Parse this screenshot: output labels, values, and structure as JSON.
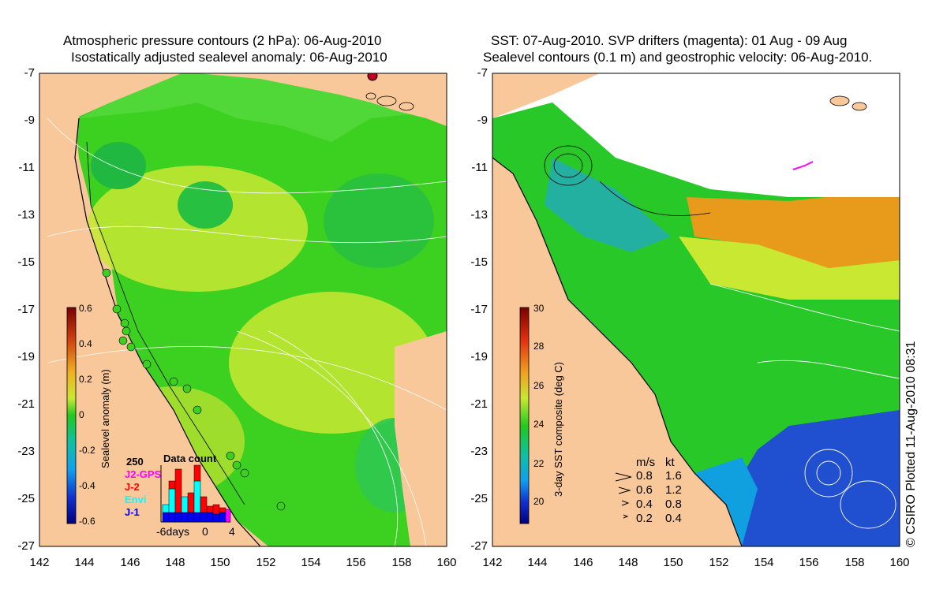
{
  "left_panel": {
    "title_line1": "Atmospheric pressure contours (2 hPa): 06-Aug-2010",
    "title_line2": "Isostatically adjusted sealevel anomaly: 06-Aug-2010",
    "colorbar_label": "Sealevel anomaly (m)",
    "colorbar_ticks": [
      "0.6",
      "0.4",
      "0.2",
      "0",
      "-0.2",
      "-0.4",
      "-0.6"
    ],
    "legend": {
      "max_label": "250",
      "title": "Data count",
      "items": [
        {
          "label": "J2-GPS",
          "color": "#ff00ff"
        },
        {
          "label": "J-2",
          "color": "#ff0000"
        },
        {
          "label": "Envi",
          "color": "#00ffff"
        },
        {
          "label": "J-1",
          "color": "#0000ff"
        }
      ],
      "axis_labels": [
        "-6days",
        "0",
        "4"
      ]
    }
  },
  "right_panel": {
    "title_line1": "SST: 07-Aug-2010. SVP drifters (magenta): 01 Aug - 09 Aug",
    "title_line2": "Sealevel contours (0.1 m) and geostrophic velocity: 06-Aug-2010.",
    "colorbar_label": "3-day SST composite (deg C)",
    "colorbar_ticks": [
      "30",
      "28",
      "26",
      "24",
      "22",
      "20"
    ],
    "speed_legend": {
      "headers": [
        "m/s",
        "kt"
      ],
      "rows": [
        [
          "0.8",
          "1.6"
        ],
        [
          "0.6",
          "1.2"
        ],
        [
          "0.4",
          "0.8"
        ],
        [
          "0.2",
          "0.4"
        ]
      ]
    }
  },
  "axes": {
    "y_ticks": [
      "-7",
      "-9",
      "-11",
      "-13",
      "-15",
      "-17",
      "-19",
      "-21",
      "-23",
      "-25",
      "-27"
    ],
    "x_ticks": [
      "142",
      "144",
      "146",
      "148",
      "150",
      "152",
      "154",
      "156",
      "158",
      "160"
    ]
  },
  "credit": "© CSIRO Plotted 11-Aug-2010 08:31",
  "colors": {
    "land": "#f8c89a",
    "sla_green": "#3cd020",
    "sla_yellow": "#c8e832",
    "sst_green": "#28c828",
    "sst_orange": "#e89a1a",
    "sst_blue": "#2050d0"
  }
}
